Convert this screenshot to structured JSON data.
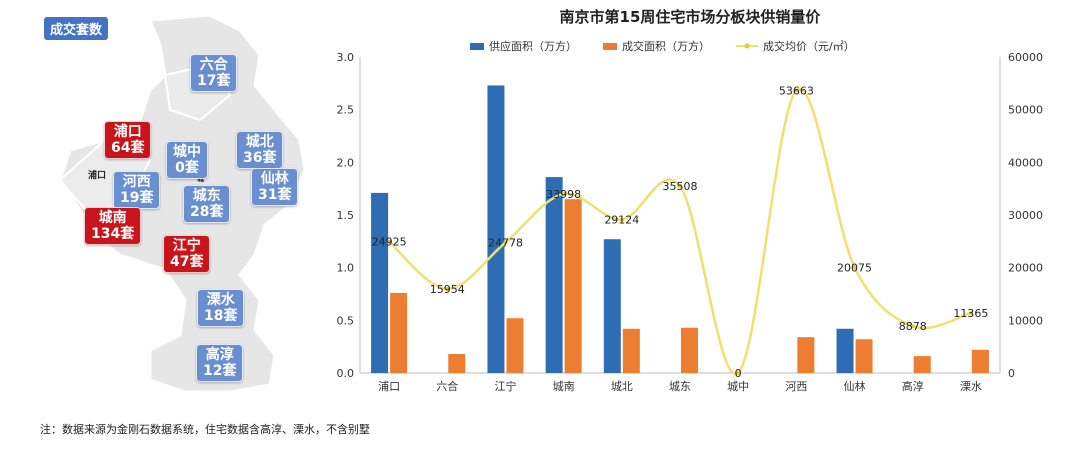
{
  "map": {
    "tag": "成交套数",
    "note_pukou": "浦口",
    "note_chengzhong_small": "城",
    "badges": [
      {
        "name": "六合",
        "count": "17套",
        "color": "blue"
      },
      {
        "name": "浦口",
        "count": "64套",
        "color": "red"
      },
      {
        "name": "城中",
        "count": "0套",
        "color": "blue"
      },
      {
        "name": "城北",
        "count": "36套",
        "color": "blue"
      },
      {
        "name": "河西",
        "count": "19套",
        "color": "blue"
      },
      {
        "name": "仙林",
        "count": "31套",
        "color": "blue"
      },
      {
        "name": "城东",
        "count": "28套",
        "color": "blue"
      },
      {
        "name": "城南",
        "count": "134套",
        "color": "red"
      },
      {
        "name": "江宁",
        "count": "47套",
        "color": "red"
      },
      {
        "name": "溧水",
        "count": "18套",
        "color": "blue"
      },
      {
        "name": "高淳",
        "count": "12套",
        "color": "blue"
      }
    ]
  },
  "chart_data": {
    "type": "bar",
    "title": "南京市第15周住宅市场分板块供销量价",
    "categories": [
      "浦口",
      "六合",
      "江宁",
      "城南",
      "城北",
      "城东",
      "城中",
      "河西",
      "仙林",
      "高淳",
      "溧水"
    ],
    "series": [
      {
        "name": "供应面积（万方）",
        "type": "bar",
        "axis": "left",
        "color": "#2e6db4",
        "values": [
          1.71,
          0,
          2.73,
          1.86,
          1.27,
          0,
          0,
          0,
          0.42,
          0,
          0
        ]
      },
      {
        "name": "成交面积（万方）",
        "type": "bar",
        "axis": "left",
        "color": "#ed7d31",
        "values": [
          0.76,
          0.18,
          0.52,
          1.65,
          0.42,
          0.43,
          0,
          0.34,
          0.32,
          0.16,
          0.22
        ]
      },
      {
        "name": "成交均价（元/㎡）",
        "type": "line",
        "axis": "right",
        "color": "#f0e06e",
        "values": [
          24925,
          15954,
          24778,
          33998,
          29124,
          35508,
          0,
          53663,
          20075,
          8878,
          11365
        ]
      }
    ],
    "ylim_left": [
      0,
      3.0
    ],
    "yticks_left": [
      "0.0",
      "0.5",
      "1.0",
      "1.5",
      "2.0",
      "2.5",
      "3.0"
    ],
    "ylim_right": [
      0,
      60000
    ],
    "yticks_right": [
      "0",
      "10000",
      "20000",
      "30000",
      "40000",
      "50000",
      "60000"
    ],
    "legend_position": "top"
  },
  "footnote": "注：数据来源为金刚石数据系统，住宅数据含高淳、溧水，不含别墅"
}
